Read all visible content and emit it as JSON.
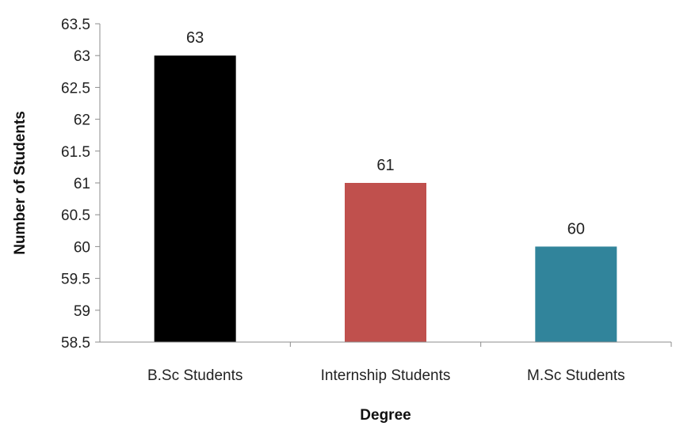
{
  "chart_data": {
    "type": "bar",
    "xlabel": "Degree",
    "ylabel": "Number of Students",
    "categories": [
      "B.Sc Students",
      "Internship Students",
      "M.Sc Students"
    ],
    "values": [
      63,
      61,
      60
    ],
    "data_labels": [
      "63",
      "61",
      "60"
    ],
    "ylim": [
      58.5,
      63.5
    ],
    "yticks": [
      "58.5",
      "59",
      "59.5",
      "60",
      "60.5",
      "61",
      "61.5",
      "62",
      "62.5",
      "63",
      "63.5"
    ],
    "grid": false,
    "legend": "none",
    "colors": [
      "#000000",
      "#c0504d",
      "#31849b"
    ]
  }
}
